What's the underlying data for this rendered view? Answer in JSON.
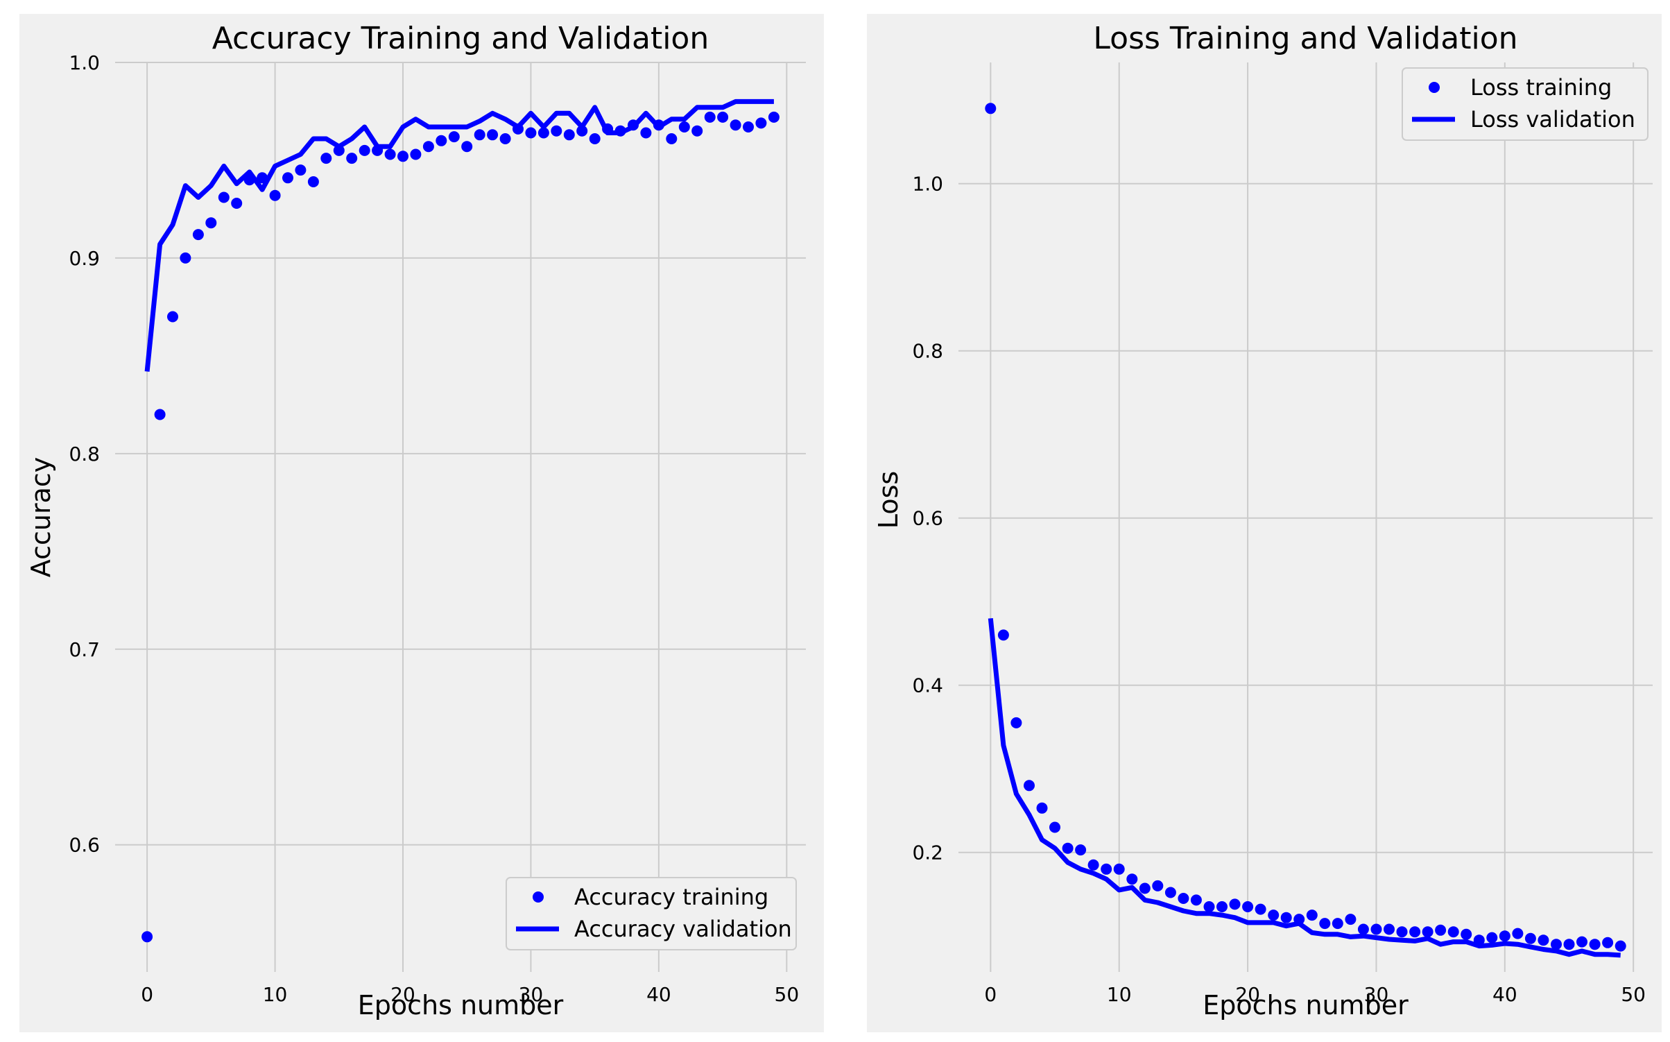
{
  "colors": {
    "background": "#f0f0f0",
    "grid": "#cbcbcb",
    "series": "#0000ff",
    "legend_bg": "#f0f0f0",
    "legend_border": "#cccccc"
  },
  "chart_data": [
    {
      "type": "line",
      "title": "Accuracy Training and Validation",
      "xlabel": "Epochs number",
      "ylabel": "Accuracy",
      "xlim": [
        -2.5,
        51.5
      ],
      "ylim": [
        0.535,
        1.0
      ],
      "xticks": [
        0,
        10,
        20,
        30,
        40,
        50
      ],
      "xtick_labels": [
        "0",
        "10",
        "20",
        "30",
        "40",
        "50"
      ],
      "yticks": [
        0.6,
        0.7,
        0.8,
        0.9,
        1.0
      ],
      "ytick_labels": [
        "0.6",
        "0.7",
        "0.8",
        "0.9",
        "1.0"
      ],
      "grid": true,
      "legend_position": "lower-right",
      "series": [
        {
          "name": "Accuracy training",
          "style": "markers",
          "x": [
            0,
            1,
            2,
            3,
            4,
            5,
            6,
            7,
            8,
            9,
            10,
            11,
            12,
            13,
            14,
            15,
            16,
            17,
            18,
            19,
            20,
            21,
            22,
            23,
            24,
            25,
            26,
            27,
            28,
            29,
            30,
            31,
            32,
            33,
            34,
            35,
            36,
            37,
            38,
            39,
            40,
            41,
            42,
            43,
            44,
            45,
            46,
            47,
            48,
            49
          ],
          "values": [
            0.553,
            0.82,
            0.87,
            0.9,
            0.912,
            0.918,
            0.931,
            0.928,
            0.94,
            0.941,
            0.932,
            0.941,
            0.945,
            0.939,
            0.951,
            0.955,
            0.951,
            0.955,
            0.955,
            0.953,
            0.952,
            0.953,
            0.957,
            0.96,
            0.962,
            0.957,
            0.963,
            0.963,
            0.961,
            0.966,
            0.964,
            0.964,
            0.965,
            0.963,
            0.965,
            0.961,
            0.966,
            0.965,
            0.968,
            0.964,
            0.968,
            0.961,
            0.967,
            0.965,
            0.972,
            0.972,
            0.968,
            0.967,
            0.969,
            0.972
          ]
        },
        {
          "name": "Accuracy validation",
          "style": "line",
          "x": [
            0,
            1,
            2,
            3,
            4,
            5,
            6,
            7,
            8,
            9,
            10,
            11,
            12,
            13,
            14,
            15,
            16,
            17,
            18,
            19,
            20,
            21,
            22,
            23,
            24,
            25,
            26,
            27,
            28,
            29,
            30,
            31,
            32,
            33,
            34,
            35,
            36,
            37,
            38,
            39,
            40,
            41,
            42,
            43,
            44,
            45,
            46,
            47,
            48,
            49
          ],
          "values": [
            0.842,
            0.907,
            0.917,
            0.937,
            0.931,
            0.937,
            0.947,
            0.938,
            0.944,
            0.935,
            0.947,
            0.95,
            0.953,
            0.961,
            0.961,
            0.957,
            0.961,
            0.967,
            0.957,
            0.957,
            0.967,
            0.971,
            0.967,
            0.967,
            0.967,
            0.967,
            0.97,
            0.974,
            0.971,
            0.967,
            0.974,
            0.967,
            0.974,
            0.974,
            0.967,
            0.977,
            0.964,
            0.964,
            0.967,
            0.974,
            0.967,
            0.971,
            0.971,
            0.977,
            0.977,
            0.977,
            0.98,
            0.98,
            0.98,
            0.98
          ]
        }
      ]
    },
    {
      "type": "line",
      "title": "Loss Training and Validation",
      "xlabel": "Epochs number",
      "ylabel": "Loss",
      "xlim": [
        -2.5,
        51.5
      ],
      "ylim": [
        0.057,
        1.145
      ],
      "xticks": [
        0,
        10,
        20,
        30,
        40,
        50
      ],
      "xtick_labels": [
        "0",
        "10",
        "20",
        "30",
        "40",
        "50"
      ],
      "yticks": [
        0.2,
        0.4,
        0.6,
        0.8,
        1.0
      ],
      "ytick_labels": [
        "0.2",
        "0.4",
        "0.6",
        "0.8",
        "1.0"
      ],
      "grid": true,
      "legend_position": "upper-right",
      "series": [
        {
          "name": "Loss training",
          "style": "markers",
          "x": [
            0,
            1,
            2,
            3,
            4,
            5,
            6,
            7,
            8,
            9,
            10,
            11,
            12,
            13,
            14,
            15,
            16,
            17,
            18,
            19,
            20,
            21,
            22,
            23,
            24,
            25,
            26,
            27,
            28,
            29,
            30,
            31,
            32,
            33,
            34,
            35,
            36,
            37,
            38,
            39,
            40,
            41,
            42,
            43,
            44,
            45,
            46,
            47,
            48,
            49
          ],
          "values": [
            1.09,
            0.46,
            0.355,
            0.28,
            0.253,
            0.23,
            0.205,
            0.203,
            0.185,
            0.18,
            0.18,
            0.168,
            0.157,
            0.16,
            0.152,
            0.145,
            0.143,
            0.135,
            0.135,
            0.138,
            0.135,
            0.132,
            0.125,
            0.122,
            0.12,
            0.125,
            0.115,
            0.115,
            0.12,
            0.108,
            0.108,
            0.108,
            0.105,
            0.105,
            0.105,
            0.107,
            0.105,
            0.102,
            0.095,
            0.098,
            0.1,
            0.103,
            0.097,
            0.095,
            0.09,
            0.09,
            0.093,
            0.09,
            0.092,
            0.088
          ]
        },
        {
          "name": "Loss validation",
          "style": "line",
          "x": [
            0,
            1,
            2,
            3,
            4,
            5,
            6,
            7,
            8,
            9,
            10,
            11,
            12,
            13,
            14,
            15,
            16,
            17,
            18,
            19,
            20,
            21,
            22,
            23,
            24,
            25,
            26,
            27,
            28,
            29,
            30,
            31,
            32,
            33,
            34,
            35,
            36,
            37,
            38,
            39,
            40,
            41,
            42,
            43,
            44,
            45,
            46,
            47,
            48,
            49
          ],
          "values": [
            0.48,
            0.328,
            0.27,
            0.245,
            0.215,
            0.205,
            0.188,
            0.18,
            0.175,
            0.168,
            0.155,
            0.158,
            0.143,
            0.14,
            0.135,
            0.13,
            0.127,
            0.127,
            0.125,
            0.122,
            0.116,
            0.116,
            0.116,
            0.112,
            0.115,
            0.104,
            0.102,
            0.102,
            0.099,
            0.1,
            0.098,
            0.096,
            0.095,
            0.094,
            0.097,
            0.09,
            0.093,
            0.093,
            0.088,
            0.089,
            0.091,
            0.09,
            0.087,
            0.084,
            0.082,
            0.078,
            0.082,
            0.078,
            0.078,
            0.077
          ]
        }
      ]
    }
  ]
}
